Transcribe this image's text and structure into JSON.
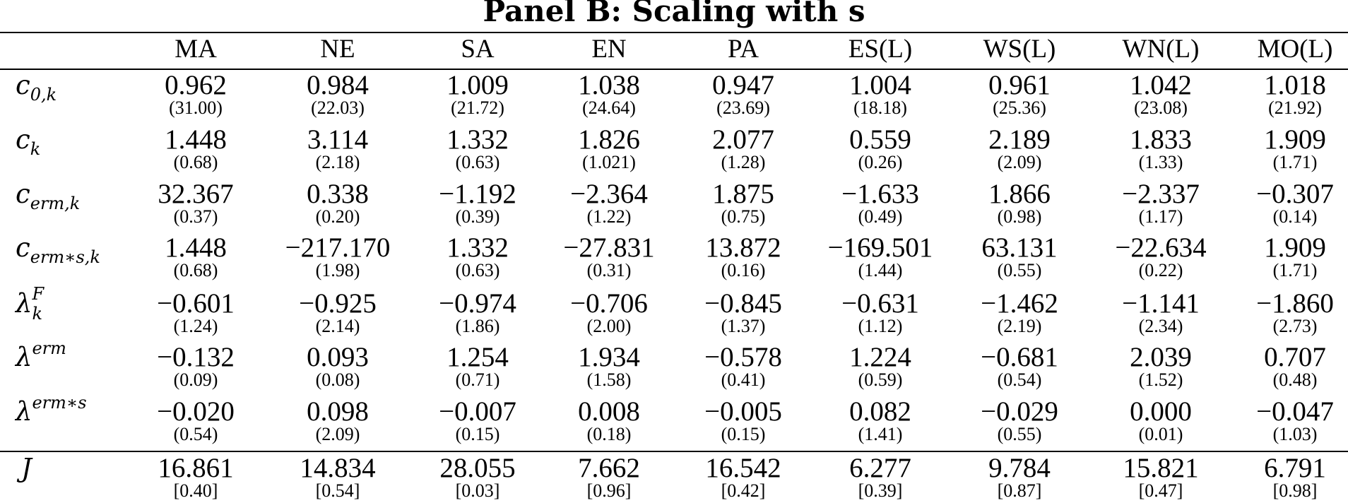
{
  "panel_title": "Panel B: Scaling with s",
  "columns": [
    "MA",
    "NE",
    "SA",
    "EN",
    "PA",
    "ES(L)",
    "WS(L)",
    "WN(L)",
    "MO(L)"
  ],
  "rows": [
    {
      "label": {
        "base": "c",
        "sub": "0,k"
      },
      "values": [
        "0.962",
        "0.984",
        "1.009",
        "1.038",
        "0.947",
        "1.004",
        "0.961",
        "1.042",
        "1.018"
      ],
      "stats": [
        "(31.00)",
        "(22.03)",
        "(21.72)",
        "(24.64)",
        "(23.69)",
        "(18.18)",
        "(25.36)",
        "(23.08)",
        "(21.92)"
      ]
    },
    {
      "label": {
        "base": "c",
        "sub": "k"
      },
      "values": [
        "1.448",
        "3.114",
        "1.332",
        "1.826",
        "2.077",
        "0.559",
        "2.189",
        "1.833",
        "1.909"
      ],
      "stats": [
        "(0.68)",
        "(2.18)",
        "(0.63)",
        "(1.021)",
        "(1.28)",
        "(0.26)",
        "(2.09)",
        "(1.33)",
        "(1.71)"
      ]
    },
    {
      "label": {
        "base": "c",
        "sub": "erm,k"
      },
      "values": [
        "32.367",
        "0.338",
        "−1.192",
        "−2.364",
        "1.875",
        "−1.633",
        "1.866",
        "−2.337",
        "−0.307"
      ],
      "stats": [
        "(0.37)",
        "(0.20)",
        "(0.39)",
        "(1.22)",
        "(0.75)",
        "(0.49)",
        "(0.98)",
        "(1.17)",
        "(0.14)"
      ]
    },
    {
      "label": {
        "base": "c",
        "sub": "erm∗s,k"
      },
      "values": [
        "1.448",
        "−217.170",
        "1.332",
        "−27.831",
        "13.872",
        "−169.501",
        "63.131",
        "−22.634",
        "1.909"
      ],
      "stats": [
        "(0.68)",
        "(1.98)",
        "(0.63)",
        "(0.31)",
        "(0.16)",
        "(1.44)",
        "(0.55)",
        "(0.22)",
        "(1.71)"
      ]
    },
    {
      "label": {
        "base": "λ",
        "sup": "F",
        "sub": "k"
      },
      "values": [
        "−0.601",
        "−0.925",
        "−0.974",
        "−0.706",
        "−0.845",
        "−0.631",
        "−1.462",
        "−1.141",
        "−1.860"
      ],
      "stats": [
        "(1.24)",
        "(2.14)",
        "(1.86)",
        "(2.00)",
        "(1.37)",
        "(1.12)",
        "(2.19)",
        "(2.34)",
        "(2.73)"
      ]
    },
    {
      "label": {
        "base": "λ",
        "sup": "erm"
      },
      "values": [
        "−0.132",
        "0.093",
        "1.254",
        "1.934",
        "−0.578",
        "1.224",
        "−0.681",
        "2.039",
        "0.707"
      ],
      "stats": [
        "(0.09)",
        "(0.08)",
        "(0.71)",
        "(1.58)",
        "(0.41)",
        "(0.59)",
        "(0.54)",
        "(1.52)",
        "(0.48)"
      ]
    },
    {
      "label": {
        "base": "λ",
        "sup": "erm∗s"
      },
      "values": [
        "−0.020",
        "0.098",
        "−0.007",
        "0.008",
        "−0.005",
        "0.082",
        "−0.029",
        "0.000",
        "−0.047"
      ],
      "stats": [
        "(0.54)",
        "(2.09)",
        "(0.15)",
        "(0.18)",
        "(0.15)",
        "(1.41)",
        "(0.55)",
        "(0.01)",
        "(1.03)"
      ]
    }
  ],
  "j_row": {
    "label": "J",
    "values": [
      "16.861",
      "14.834",
      "28.055",
      "7.662",
      "16.542",
      "6.277",
      "9.784",
      "15.821",
      "6.791"
    ],
    "pvalues": [
      "[0.40]",
      "[0.54]",
      "[0.03]",
      "[0.96]",
      "[0.42]",
      "[0.39]",
      "[0.87]",
      "[0.47]",
      "[0.98]"
    ]
  }
}
